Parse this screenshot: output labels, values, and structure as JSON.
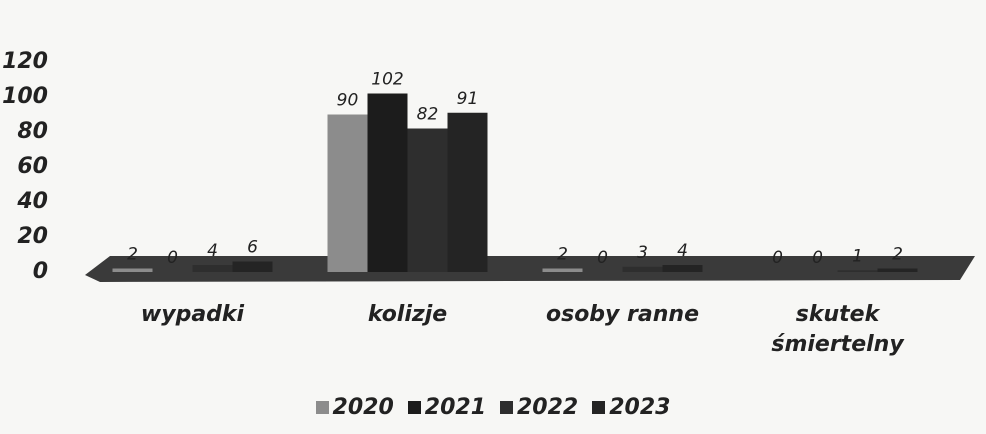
{
  "chart_data": {
    "type": "bar",
    "categories": [
      "wypadki",
      "kolizje",
      "osoby ranne",
      "skutek śmiertelny"
    ],
    "series": [
      {
        "name": "2020",
        "color": "#8c8c8c",
        "values": [
          2,
          90,
          2,
          0
        ]
      },
      {
        "name": "2021",
        "color": "#1c1c1c",
        "values": [
          0,
          102,
          0,
          0
        ]
      },
      {
        "name": "2022",
        "color": "#2e2e2e",
        "values": [
          4,
          82,
          3,
          1
        ]
      },
      {
        "name": "2023",
        "color": "#242424",
        "values": [
          6,
          91,
          4,
          2
        ]
      }
    ],
    "ylim": [
      0,
      120
    ],
    "yticks": [
      0,
      20,
      40,
      60,
      80,
      100,
      120
    ],
    "grid": false,
    "legend": "bottom"
  }
}
